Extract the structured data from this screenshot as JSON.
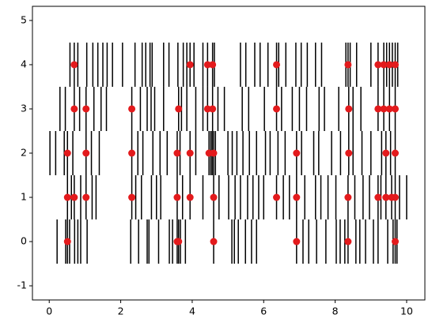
{
  "chart_data": {
    "type": "eventplot",
    "xlim": [
      -0.47,
      10.51
    ],
    "ylim": [
      -1.32,
      5.32
    ],
    "xticks": [
      0,
      2,
      4,
      6,
      8,
      10
    ],
    "yticks": [
      -1,
      0,
      1,
      2,
      3,
      4,
      5
    ],
    "lineoffsets": [
      0,
      1,
      2,
      3,
      4
    ],
    "linelength": 1,
    "color": "#000000",
    "events": [
      [
        0.22,
        0.46,
        0.51,
        0.57,
        0.71,
        0.8,
        0.88,
        1.06,
        2.28,
        2.5,
        2.74,
        2.79,
        3.06,
        3.36,
        3.45,
        3.58,
        3.62,
        3.67,
        3.81,
        4.6,
        5.11,
        5.18,
        5.29,
        5.49,
        5.66,
        5.8,
        6.92,
        7.1,
        7.26,
        7.48,
        7.74,
        8.03,
        8.14,
        8.27,
        8.36,
        8.58,
        8.69,
        8.85,
        9.07,
        9.2,
        9.47,
        9.62,
        9.68,
        9.73
      ],
      [
        0.51,
        0.62,
        0.7,
        0.88,
        1.03,
        1.2,
        1.31,
        2.31,
        2.42,
        2.58,
        2.86,
        3.0,
        3.12,
        3.58,
        3.73,
        3.94,
        4.3,
        4.6,
        4.75,
        5.02,
        5.2,
        5.35,
        5.55,
        5.7,
        5.86,
        6.0,
        6.36,
        6.55,
        6.72,
        6.92,
        7.15,
        7.45,
        7.6,
        7.8,
        8.02,
        8.36,
        8.55,
        8.78,
        8.96,
        9.2,
        9.28,
        9.42,
        9.58,
        9.68,
        9.8,
        10.0
      ],
      [
        0.02,
        0.18,
        0.42,
        0.51,
        0.66,
        1.03,
        1.18,
        1.4,
        2.31,
        2.48,
        2.62,
        2.9,
        3.1,
        3.3,
        3.58,
        3.66,
        3.94,
        4.1,
        4.47,
        4.52,
        4.56,
        4.6,
        4.65,
        5.0,
        5.12,
        5.25,
        5.42,
        5.6,
        5.8,
        6.05,
        6.18,
        6.4,
        6.6,
        6.92,
        7.06,
        7.4,
        7.54,
        7.9,
        8.15,
        8.38,
        8.5,
        8.75,
        9.0,
        9.3,
        9.42,
        9.55,
        9.68
      ],
      [
        0.3,
        0.45,
        0.7,
        0.85,
        1.03,
        1.25,
        1.45,
        1.6,
        2.31,
        2.55,
        2.74,
        2.85,
        2.95,
        3.2,
        3.62,
        3.7,
        3.85,
        4.1,
        4.3,
        4.43,
        4.57,
        4.72,
        4.9,
        5.4,
        5.58,
        6.02,
        6.36,
        6.5,
        6.8,
        7.0,
        7.2,
        7.55,
        7.7,
        8.1,
        8.38,
        8.5,
        8.72,
        9.2,
        9.36,
        9.52,
        9.68
      ],
      [
        0.58,
        0.7,
        0.8,
        1.05,
        1.22,
        1.36,
        1.5,
        1.62,
        1.77,
        2.05,
        2.4,
        2.6,
        2.7,
        2.82,
        2.88,
        3.2,
        3.35,
        3.6,
        3.75,
        3.85,
        3.94,
        4.05,
        4.3,
        4.43,
        4.57,
        4.62,
        5.35,
        5.5,
        5.75,
        5.9,
        6.12,
        6.36,
        6.42,
        6.62,
        6.9,
        7.05,
        7.22,
        7.45,
        7.62,
        8.3,
        8.36,
        8.42,
        8.6,
        9.0,
        9.2,
        9.36,
        9.44,
        9.52,
        9.6,
        9.68,
        9.75
      ]
    ],
    "points": {
      "color": "#e31a1c",
      "x": [
        0.51,
        3.58,
        3.62,
        4.6,
        6.92,
        8.36,
        9.68,
        0.51,
        0.7,
        1.03,
        2.31,
        3.58,
        3.94,
        4.6,
        6.36,
        6.92,
        8.36,
        9.2,
        9.42,
        9.58,
        9.68,
        0.51,
        1.03,
        2.31,
        3.58,
        3.94,
        4.47,
        4.6,
        6.92,
        8.38,
        9.42,
        9.68,
        0.7,
        1.03,
        2.31,
        3.62,
        4.43,
        4.57,
        6.36,
        8.38,
        9.2,
        9.36,
        9.52,
        9.68,
        0.7,
        3.94,
        4.43,
        4.57,
        6.36,
        8.36,
        9.2,
        9.36,
        9.52,
        9.68
      ],
      "y": [
        0,
        0,
        0,
        0,
        0,
        0,
        0,
        1,
        1,
        1,
        1,
        1,
        1,
        1,
        1,
        1,
        1,
        1,
        1,
        1,
        1,
        2,
        2,
        2,
        2,
        2,
        2,
        2,
        2,
        2,
        2,
        2,
        3,
        3,
        3,
        3,
        3,
        3,
        3,
        3,
        3,
        3,
        3,
        3,
        4,
        4,
        4,
        4,
        4,
        4,
        4,
        4,
        4,
        4
      ]
    }
  }
}
